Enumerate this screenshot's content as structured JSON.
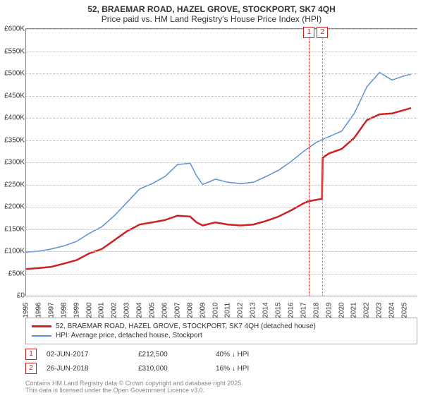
{
  "title": {
    "line1": "52, BRAEMAR ROAD, HAZEL GROVE, STOCKPORT, SK7 4QH",
    "line2": "Price paid vs. HM Land Registry's House Price Index (HPI)",
    "fontsize": 12
  },
  "chart": {
    "type": "line",
    "background_color": "#ffffff",
    "grid_color": "#bbbbbb",
    "axis_color": "#888888",
    "x_range": [
      1995,
      2026
    ],
    "y_range": [
      0,
      600000
    ],
    "y_ticks": [
      0,
      50000,
      100000,
      150000,
      200000,
      250000,
      300000,
      350000,
      400000,
      450000,
      500000,
      550000,
      600000
    ],
    "y_tick_labels": [
      "£0",
      "£50K",
      "£100K",
      "£150K",
      "£200K",
      "£250K",
      "£300K",
      "£350K",
      "£400K",
      "£450K",
      "£500K",
      "£550K",
      "£600K"
    ],
    "x_ticks": [
      1995,
      1996,
      1997,
      1998,
      1999,
      2000,
      2001,
      2002,
      2003,
      2004,
      2005,
      2006,
      2007,
      2008,
      2009,
      2010,
      2011,
      2012,
      2013,
      2014,
      2015,
      2016,
      2017,
      2018,
      2019,
      2020,
      2021,
      2022,
      2023,
      2024,
      2025
    ],
    "label_fontsize": 10,
    "series": [
      {
        "id": "price_paid",
        "label": "52, BRAEMAR ROAD, HAZEL GROVE, STOCKPORT, SK7 4QH (detached house)",
        "color": "#cc2222",
        "line_width": 2.5,
        "points": [
          [
            1995,
            60000
          ],
          [
            1996,
            62000
          ],
          [
            1997,
            65000
          ],
          [
            1998,
            72000
          ],
          [
            1999,
            80000
          ],
          [
            2000,
            95000
          ],
          [
            2001,
            105000
          ],
          [
            2002,
            125000
          ],
          [
            2003,
            145000
          ],
          [
            2004,
            160000
          ],
          [
            2005,
            165000
          ],
          [
            2006,
            170000
          ],
          [
            2007,
            180000
          ],
          [
            2008,
            178000
          ],
          [
            2008.5,
            165000
          ],
          [
            2009,
            158000
          ],
          [
            2010,
            165000
          ],
          [
            2011,
            160000
          ],
          [
            2012,
            158000
          ],
          [
            2013,
            160000
          ],
          [
            2014,
            168000
          ],
          [
            2015,
            178000
          ],
          [
            2016,
            192000
          ],
          [
            2017,
            208000
          ],
          [
            2017.4,
            212500
          ],
          [
            2018.45,
            218000
          ],
          [
            2018.5,
            310000
          ],
          [
            2019,
            320000
          ],
          [
            2020,
            330000
          ],
          [
            2021,
            355000
          ],
          [
            2022,
            395000
          ],
          [
            2023,
            408000
          ],
          [
            2024,
            410000
          ],
          [
            2025,
            418000
          ],
          [
            2025.5,
            422000
          ]
        ]
      },
      {
        "id": "hpi",
        "label": "HPI: Average price, detached house, Stockport",
        "color": "#5b8fd6",
        "line_width": 1.5,
        "points": [
          [
            1995,
            98000
          ],
          [
            1996,
            100000
          ],
          [
            1997,
            105000
          ],
          [
            1998,
            112000
          ],
          [
            1999,
            122000
          ],
          [
            2000,
            140000
          ],
          [
            2001,
            155000
          ],
          [
            2002,
            180000
          ],
          [
            2003,
            210000
          ],
          [
            2004,
            240000
          ],
          [
            2005,
            252000
          ],
          [
            2006,
            268000
          ],
          [
            2007,
            295000
          ],
          [
            2008,
            298000
          ],
          [
            2008.5,
            270000
          ],
          [
            2009,
            250000
          ],
          [
            2010,
            262000
          ],
          [
            2011,
            255000
          ],
          [
            2012,
            252000
          ],
          [
            2013,
            255000
          ],
          [
            2014,
            268000
          ],
          [
            2015,
            282000
          ],
          [
            2016,
            302000
          ],
          [
            2017,
            325000
          ],
          [
            2018,
            345000
          ],
          [
            2019,
            358000
          ],
          [
            2020,
            370000
          ],
          [
            2021,
            410000
          ],
          [
            2022,
            470000
          ],
          [
            2023,
            502000
          ],
          [
            2024,
            485000
          ],
          [
            2025,
            495000
          ],
          [
            2025.5,
            498000
          ]
        ]
      }
    ],
    "markers": [
      {
        "num": "1",
        "x": 2017.42,
        "color": "#cc2222"
      },
      {
        "num": "2",
        "x": 2018.48,
        "color": "#5b8fd6"
      }
    ]
  },
  "legend": {
    "rows": [
      {
        "color": "#cc2222",
        "width": 3,
        "text": "52, BRAEMAR ROAD, HAZEL GROVE, STOCKPORT, SK7 4QH (detached house)"
      },
      {
        "color": "#5b8fd6",
        "width": 2,
        "text": "HPI: Average price, detached house, Stockport"
      }
    ]
  },
  "events": [
    {
      "num": "1",
      "date": "02-JUN-2017",
      "price": "£212,500",
      "delta": "40% ↓ HPI"
    },
    {
      "num": "2",
      "date": "26-JUN-2018",
      "price": "£310,000",
      "delta": "16% ↓ HPI"
    }
  ],
  "footnote": {
    "line1": "Contains HM Land Registry data © Crown copyright and database right 2025.",
    "line2": "This data is licensed under the Open Government Licence v3.0."
  }
}
